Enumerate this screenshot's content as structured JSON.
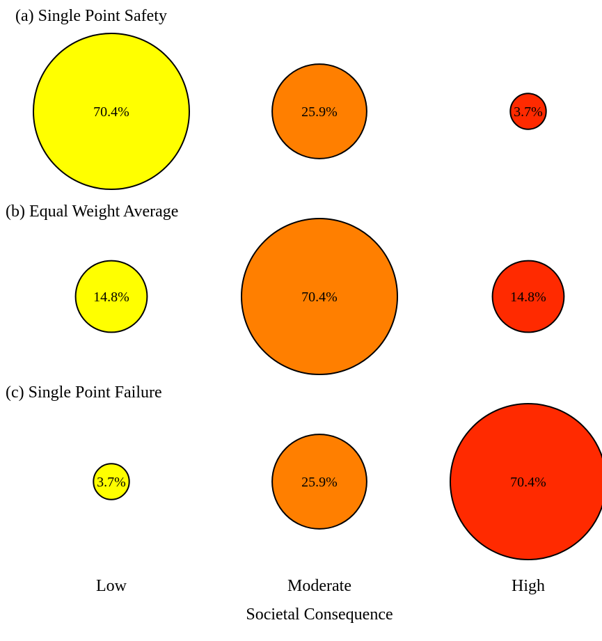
{
  "chart_data": {
    "type": "bubble",
    "categories": [
      "Low",
      "Moderate",
      "High"
    ],
    "xlabel": "Societal Consequence",
    "category_colors": [
      "#ffff00",
      "#ff7f00",
      "#ff2a00"
    ],
    "panels": [
      {
        "title": "(a) Single Point Safety",
        "values": [
          70.4,
          25.9,
          3.7
        ],
        "labels": [
          "70.4%",
          "25.9%",
          "3.7%"
        ]
      },
      {
        "title": "(b) Equal Weight Average",
        "values": [
          14.8,
          70.4,
          14.8
        ],
        "labels": [
          "14.8%",
          "70.4%",
          "14.8%"
        ]
      },
      {
        "title": "(c) Single Point Failure",
        "values": [
          3.7,
          25.9,
          70.4
        ],
        "labels": [
          "3.7%",
          "25.9%",
          "70.4%"
        ]
      }
    ]
  }
}
